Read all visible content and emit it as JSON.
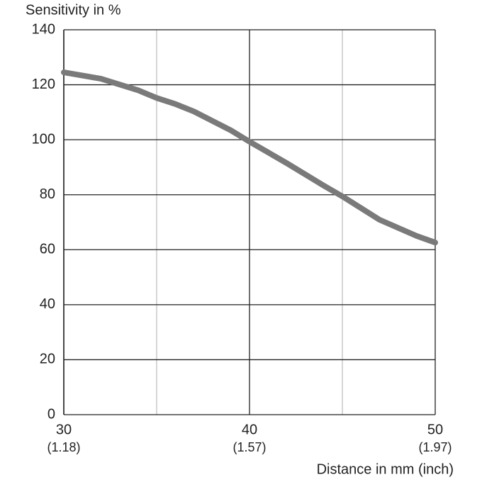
{
  "chart_data": {
    "type": "line",
    "y_label": "Sensitivity in %",
    "x_label": "Distance in mm (inch)",
    "x": [
      30,
      32,
      34,
      35,
      36,
      37,
      39,
      40,
      42,
      44,
      45,
      47,
      49,
      50
    ],
    "series": [
      {
        "color": "#7a7a7a",
        "values": [
          124.5,
          122.2,
          118,
          115.2,
          113,
          110.3,
          103.4,
          99.3,
          91.5,
          83.3,
          79.4,
          70.9,
          65,
          62.6
        ]
      }
    ],
    "xlim": [
      30,
      50
    ],
    "ylim": [
      0,
      140
    ],
    "xticks": [
      30,
      40,
      50
    ],
    "xtick_sublabels": [
      "(1.18)",
      "(1.57)",
      "(1.97)"
    ],
    "xgrid_minor": [
      35,
      45
    ],
    "yticks": [
      0,
      20,
      40,
      60,
      80,
      100,
      120,
      140
    ],
    "grid": true
  }
}
